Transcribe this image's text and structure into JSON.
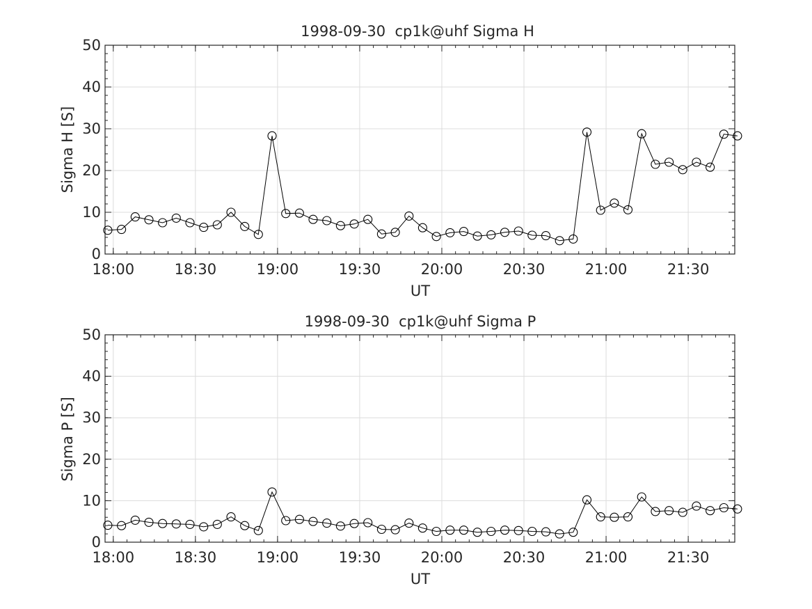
{
  "colors": {
    "axis": "#262626",
    "grid": "#dcdcdc",
    "line": "#000000",
    "marker": "#000000",
    "background": "#ffffff"
  },
  "chart_data": [
    {
      "type": "line",
      "title": "1998-09-30  cp1k@uhf Sigma H",
      "xlabel": "UT",
      "ylabel": "Sigma H [S]",
      "x_ticks": [
        "18:00",
        "18:30",
        "19:00",
        "19:30",
        "20:00",
        "20:30",
        "21:00",
        "21:30"
      ],
      "y_ticks": [
        "0",
        "10",
        "20",
        "30",
        "40",
        "50"
      ],
      "xlim": [
        "17:57",
        "21:47"
      ],
      "ylim": [
        0,
        50
      ],
      "grid": true,
      "marker": "open-circle",
      "series": [
        {
          "x": [
            "17:58",
            "18:03",
            "18:08",
            "18:13",
            "18:18",
            "18:23",
            "18:28",
            "18:33",
            "18:38",
            "18:43",
            "18:48",
            "18:53",
            "18:58",
            "19:03",
            "19:08",
            "19:13",
            "19:18",
            "19:23",
            "19:28",
            "19:33",
            "19:38",
            "19:43",
            "19:48",
            "19:53",
            "19:58",
            "20:03",
            "20:08",
            "20:13",
            "20:18",
            "20:23",
            "20:28",
            "20:33",
            "20:38",
            "20:43",
            "20:48",
            "20:53",
            "20:58",
            "21:03",
            "21:08",
            "21:13",
            "21:18",
            "21:23",
            "21:28",
            "21:33",
            "21:38",
            "21:43",
            "21:48"
          ],
          "values": [
            5.7,
            5.9,
            8.9,
            8.2,
            7.5,
            8.6,
            7.5,
            6.4,
            7.0,
            10.0,
            6.6,
            4.7,
            28.3,
            9.7,
            9.8,
            8.3,
            8.0,
            6.8,
            7.2,
            8.3,
            4.8,
            5.2,
            9.1,
            6.3,
            4.2,
            5.1,
            5.4,
            4.3,
            4.6,
            5.2,
            5.5,
            4.5,
            4.4,
            3.2,
            3.6,
            29.2,
            10.5,
            12.2,
            10.6,
            28.8,
            21.5,
            22.0,
            20.2,
            22.0,
            20.8,
            28.7,
            28.3
          ]
        }
      ]
    },
    {
      "type": "line",
      "title": "1998-09-30  cp1k@uhf Sigma P",
      "xlabel": "UT",
      "ylabel": "Sigma P [S]",
      "x_ticks": [
        "18:00",
        "18:30",
        "19:00",
        "19:30",
        "20:00",
        "20:30",
        "21:00",
        "21:30"
      ],
      "y_ticks": [
        "0",
        "10",
        "20",
        "30",
        "40",
        "50"
      ],
      "xlim": [
        "17:57",
        "21:47"
      ],
      "ylim": [
        0,
        50
      ],
      "grid": true,
      "marker": "open-circle",
      "series": [
        {
          "x": [
            "17:58",
            "18:03",
            "18:08",
            "18:13",
            "18:18",
            "18:23",
            "18:28",
            "18:33",
            "18:38",
            "18:43",
            "18:48",
            "18:53",
            "18:58",
            "19:03",
            "19:08",
            "19:13",
            "19:18",
            "19:23",
            "19:28",
            "19:33",
            "19:38",
            "19:43",
            "19:48",
            "19:53",
            "19:58",
            "20:03",
            "20:08",
            "20:13",
            "20:18",
            "20:23",
            "20:28",
            "20:33",
            "20:38",
            "20:43",
            "20:48",
            "20:53",
            "20:58",
            "21:03",
            "21:08",
            "21:13",
            "21:18",
            "21:23",
            "21:28",
            "21:33",
            "21:38",
            "21:43",
            "21:48"
          ],
          "values": [
            4.1,
            4.0,
            5.3,
            4.8,
            4.5,
            4.4,
            4.3,
            3.7,
            4.3,
            6.1,
            4.0,
            2.8,
            12.1,
            5.2,
            5.5,
            5.0,
            4.6,
            3.9,
            4.5,
            4.7,
            3.1,
            3.0,
            4.6,
            3.4,
            2.6,
            2.9,
            2.9,
            2.4,
            2.6,
            2.9,
            2.8,
            2.6,
            2.5,
            2.0,
            2.4,
            10.2,
            6.1,
            6.0,
            6.1,
            10.9,
            7.4,
            7.6,
            7.2,
            8.7,
            7.6,
            8.3,
            8.0
          ]
        }
      ]
    }
  ]
}
